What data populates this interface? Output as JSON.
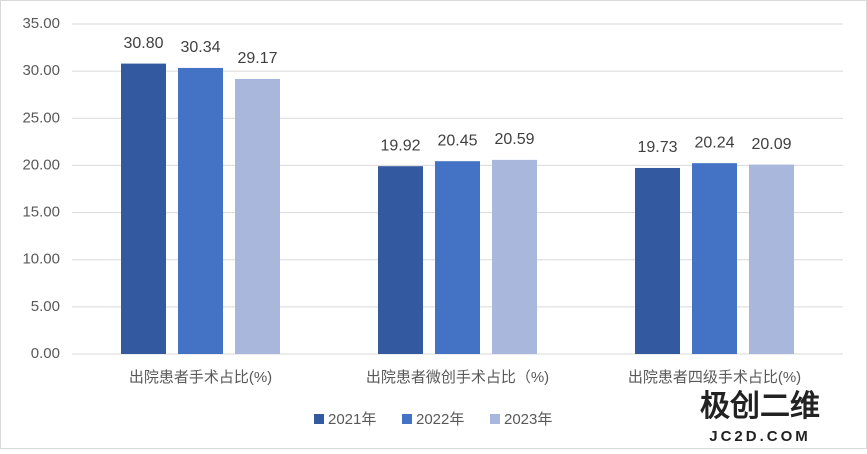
{
  "chart_data": {
    "type": "bar",
    "categories": [
      "出院患者手术占比(%)",
      "出院患者微创手术占比（%)",
      "出院患者四级手术占比(%)"
    ],
    "series": [
      {
        "name": "2021年",
        "color": "#335aa1",
        "values": [
          30.8,
          19.92,
          19.73
        ],
        "value_labels": [
          "30.80",
          "19.92",
          "19.73"
        ]
      },
      {
        "name": "2022年",
        "color": "#4472c4",
        "values": [
          30.34,
          20.45,
          20.24
        ],
        "value_labels": [
          "30.34",
          "20.45",
          "20.24"
        ]
      },
      {
        "name": "2023年",
        "color": "#a8b7db",
        "values": [
          29.17,
          20.59,
          20.09
        ],
        "value_labels": [
          "29.17",
          "20.59",
          "20.09"
        ]
      }
    ],
    "ylim": [
      0,
      35
    ],
    "yticks": [
      {
        "value": 0,
        "label": "0.00"
      },
      {
        "value": 5,
        "label": "5.00"
      },
      {
        "value": 10,
        "label": "10.00"
      },
      {
        "value": 15,
        "label": "15.00"
      },
      {
        "value": 20,
        "label": "20.00"
      },
      {
        "value": 25,
        "label": "25.00"
      },
      {
        "value": 30,
        "label": "30.00"
      },
      {
        "value": 35,
        "label": "35.00"
      }
    ],
    "grid": true,
    "legend": "bottom",
    "annotations": [
      "极创二维",
      "JC2D.COM"
    ]
  }
}
